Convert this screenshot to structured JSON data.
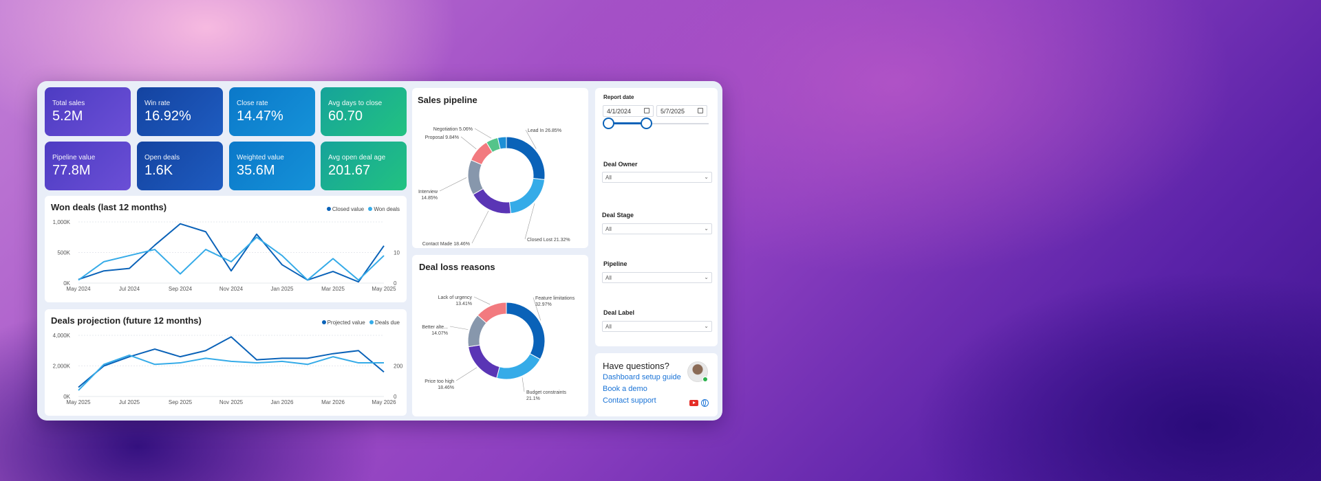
{
  "kpis": [
    {
      "label": "Total sales",
      "value": "5.2M"
    },
    {
      "label": "Win rate",
      "value": "16.92%"
    },
    {
      "label": "Close rate",
      "value": "14.47%"
    },
    {
      "label": "Avg days to close",
      "value": "60.70"
    },
    {
      "label": "Pipeline value",
      "value": "77.8M"
    },
    {
      "label": "Open deals",
      "value": "1.6K"
    },
    {
      "label": "Weighted value",
      "value": "35.6M"
    },
    {
      "label": "Avg open deal age",
      "value": "201.67"
    }
  ],
  "colors": {
    "dark_blue": "#0a62b8",
    "light_blue": "#35abe8",
    "purple": "#5b3cc4",
    "teal": "#1fb28c",
    "green": "#22c281"
  },
  "won_chart": {
    "title": "Won deals (last 12 months)",
    "legend": [
      "Closed value",
      "Won deals"
    ]
  },
  "proj_chart": {
    "title": "Deals projection (future 12 months)",
    "legend": [
      "Projected value",
      "Deals due"
    ]
  },
  "pipeline": {
    "title": "Sales pipeline"
  },
  "loss": {
    "title": "Deal loss reasons"
  },
  "filters": {
    "report_date_label": "Report date",
    "date_from": "4/1/2024",
    "date_to": "5/7/2025",
    "deal_owner_label": "Deal Owner",
    "deal_owner_value": "All",
    "deal_stage_label": "Deal Stage",
    "deal_stage_value": "All",
    "pipeline_label": "Pipeline",
    "pipeline_value": "All",
    "deal_label_label": "Deal Label",
    "deal_label_value": "All"
  },
  "help": {
    "title": "Have questions?",
    "links": [
      "Dashboard setup guide",
      "Book a demo",
      "Contact support"
    ],
    "icons": [
      "avatar",
      "youtube-icon",
      "globe-icon"
    ]
  },
  "chart_data": [
    {
      "type": "line",
      "title": "Won deals (last 12 months)",
      "x": [
        "May 2024",
        "Jun 2024",
        "Jul 2024",
        "Aug 2024",
        "Sep 2024",
        "Oct 2024",
        "Nov 2024",
        "Dec 2024",
        "Jan 2025",
        "Feb 2025",
        "Mar 2025",
        "Apr 2025",
        "May 2025"
      ],
      "x_ticks": [
        "May 2024",
        "Jul 2024",
        "Sep 2024",
        "Nov 2024",
        "Jan 2025",
        "Mar 2025",
        "May 2025"
      ],
      "y_ticks_left": [
        "0K",
        "500K",
        "1,000K"
      ],
      "y_ticks_right": [
        "0",
        "10"
      ],
      "ylim_left": [
        0,
        1000
      ],
      "ylim_right": [
        0,
        20
      ],
      "series": [
        {
          "name": "Closed value",
          "axis": "left",
          "color": "#0a62b8",
          "values": [
            60,
            200,
            240,
            620,
            970,
            840,
            200,
            800,
            300,
            50,
            190,
            20,
            610
          ]
        },
        {
          "name": "Won deals",
          "axis": "right",
          "color": "#35abe8",
          "values": [
            1,
            7,
            9,
            11,
            3,
            11,
            7,
            15,
            9,
            1,
            8,
            1,
            9
          ]
        }
      ]
    },
    {
      "type": "line",
      "title": "Deals projection (future 12 months)",
      "x": [
        "May 2025",
        "Jun 2025",
        "Jul 2025",
        "Aug 2025",
        "Sep 2025",
        "Oct 2025",
        "Nov 2025",
        "Dec 2025",
        "Jan 2026",
        "Feb 2026",
        "Mar 2026",
        "Apr 2026",
        "May 2026"
      ],
      "x_ticks": [
        "May 2025",
        "Jul 2025",
        "Sep 2025",
        "Nov 2025",
        "Jan 2026",
        "Mar 2026",
        "May 2026"
      ],
      "y_ticks_left": [
        "0K",
        "2,000K",
        "4,000K"
      ],
      "y_ticks_right": [
        "0",
        "200"
      ],
      "ylim_left": [
        0,
        4000
      ],
      "ylim_right": [
        0,
        400
      ],
      "series": [
        {
          "name": "Projected value",
          "axis": "left",
          "color": "#0a62b8",
          "values": [
            600,
            2000,
            2600,
            3100,
            2600,
            3000,
            3900,
            2400,
            2500,
            2500,
            2800,
            3000,
            1600
          ]
        },
        {
          "name": "Deals due",
          "axis": "right",
          "color": "#35abe8",
          "values": [
            40,
            210,
            270,
            210,
            220,
            250,
            230,
            220,
            230,
            210,
            260,
            220,
            220
          ]
        }
      ]
    },
    {
      "type": "pie",
      "title": "Sales pipeline",
      "donut": true,
      "slices": [
        {
          "label": "Lead In",
          "value": 26.85,
          "color": "#0a62b8",
          "text": "Lead In 26.85%"
        },
        {
          "label": "Closed Lost",
          "value": 21.32,
          "color": "#35abe8",
          "text": "Closed Lost 21.32%"
        },
        {
          "label": "Contact Made",
          "value": 18.46,
          "color": "#5a35b5",
          "text": "Contact Made 18.46%"
        },
        {
          "label": "Interview",
          "value": 14.85,
          "color": "#8797ac",
          "text": "Interview\n14.85%"
        },
        {
          "label": "Proposal",
          "value": 9.84,
          "color": "#f27a7f",
          "text": "Proposal 9.84%"
        },
        {
          "label": "Negotiation",
          "value": 5.06,
          "color": "#54c48a",
          "text": "Negotiation 5.06%"
        },
        {
          "label": "Other",
          "value": 3.62,
          "color": "#1d8fd6",
          "text": ""
        }
      ]
    },
    {
      "type": "pie",
      "title": "Deal loss reasons",
      "donut": true,
      "slices": [
        {
          "label": "Feature limitations",
          "value": 32.97,
          "color": "#0a62b8",
          "text": "Feature limitations\n32.97%"
        },
        {
          "label": "Budget constraints",
          "value": 21.1,
          "color": "#35abe8",
          "text": "Budget constraints\n21.1%"
        },
        {
          "label": "Price too high",
          "value": 18.46,
          "color": "#5a35b5",
          "text": "Price too high\n18.46%"
        },
        {
          "label": "Better alte...",
          "value": 14.07,
          "color": "#8797ac",
          "text": "Better alte...\n14.07%"
        },
        {
          "label": "Lack of urgency",
          "value": 13.41,
          "color": "#f27a7f",
          "text": "Lack of urgency\n13.41%"
        }
      ]
    }
  ]
}
